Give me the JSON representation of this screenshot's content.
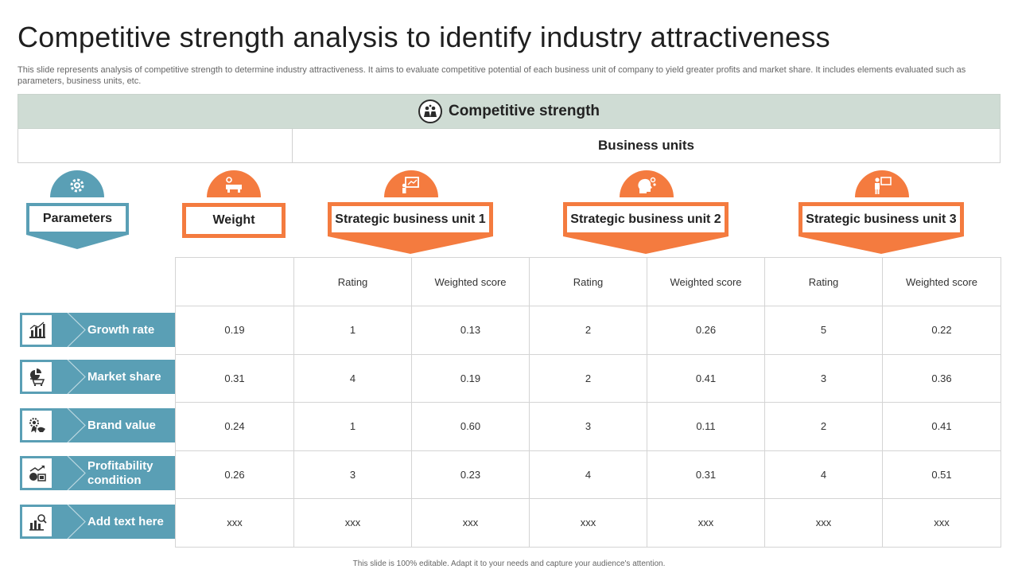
{
  "slide": {
    "title": "Competitive strength analysis to identify industry attractiveness",
    "subtitle": "This slide represents analysis of competitive strength to determine industry attractiveness. It aims to evaluate competitive potential of each business unit of company to yield greater profits and market share. It includes elements evaluated such as parameters, business units, etc.",
    "band_title": "Competitive strength",
    "band_icon": "team-discussion-icon",
    "business_units_label": "Business units",
    "footer": "This slide is 100% editable. Adapt it to your needs and capture your audience's attention."
  },
  "colors": {
    "teal": "#5a9fb5",
    "orange": "#f47b3f",
    "band": "#cfdcd4"
  },
  "headers": {
    "parameters": {
      "label": "Parameters",
      "icon": "gear-settings-icon"
    },
    "weight": {
      "label": "Weight",
      "icon": "weighing-scale-icon"
    },
    "units": [
      {
        "label": "Strategic business unit 1",
        "icon": "presentation-board-icon"
      },
      {
        "label": "Strategic business unit 2",
        "icon": "head-gears-icon"
      },
      {
        "label": "Strategic business unit 3",
        "icon": "businessman-board-icon"
      }
    ]
  },
  "table": {
    "col_headers": [
      "",
      "Rating",
      "Weighted score",
      "Rating",
      "Weighted score",
      "Rating",
      "Weighted score"
    ],
    "rows": [
      {
        "param": "Growth rate",
        "icon": "bar-chart-icon",
        "cells": [
          "0.19",
          "1",
          "0.13",
          "2",
          "0.26",
          "5",
          "0.22"
        ]
      },
      {
        "param": "Market share",
        "icon": "pie-cart-icon",
        "cells": [
          "0.31",
          "4",
          "0.19",
          "2",
          "0.41",
          "3",
          "0.36"
        ]
      },
      {
        "param": "Brand value",
        "icon": "badge-handshake-icon",
        "cells": [
          "0.24",
          "1",
          "0.60",
          "3",
          "0.11",
          "2",
          "0.41"
        ]
      },
      {
        "param": "Profitability condition",
        "icon": "money-growth-icon",
        "cells": [
          "0.26",
          "3",
          "0.23",
          "4",
          "0.31",
          "4",
          "0.51"
        ]
      },
      {
        "param": "Add text here",
        "icon": "chart-magnifier-icon",
        "cells": [
          "xxx",
          "xxx",
          "xxx",
          "xxx",
          "xxx",
          "xxx",
          "xxx"
        ]
      }
    ]
  }
}
